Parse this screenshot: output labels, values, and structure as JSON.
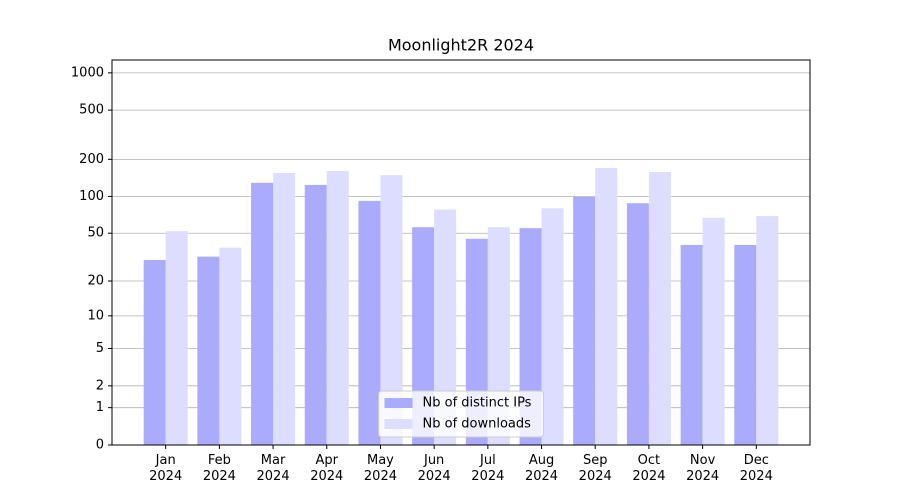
{
  "chart_data": {
    "type": "bar",
    "title": "Moonlight2R 2024",
    "categories": [
      "Jan\n2024",
      "Feb\n2024",
      "Mar\n2024",
      "Apr\n2024",
      "May\n2024",
      "Jun\n2024",
      "Jul\n2024",
      "Aug\n2024",
      "Sep\n2024",
      "Oct\n2024",
      "Nov\n2024",
      "Dec\n2024"
    ],
    "series": [
      {
        "name": "Nb of distinct IPs",
        "color": "#aaaaff",
        "values": [
          30,
          32,
          129,
          124,
          92,
          56,
          45,
          55,
          99,
          88,
          40,
          40
        ]
      },
      {
        "name": "Nb of downloads",
        "color": "#ddddff",
        "values": [
          52,
          38,
          155,
          161,
          149,
          78,
          56,
          80,
          170,
          158,
          67,
          69
        ]
      }
    ],
    "yscale": "log1p",
    "ylim": [
      0,
      1270
    ],
    "yticks": [
      0,
      1,
      2,
      5,
      10,
      20,
      50,
      100,
      200,
      500,
      1000
    ],
    "grid": true,
    "legend": "lower center"
  }
}
